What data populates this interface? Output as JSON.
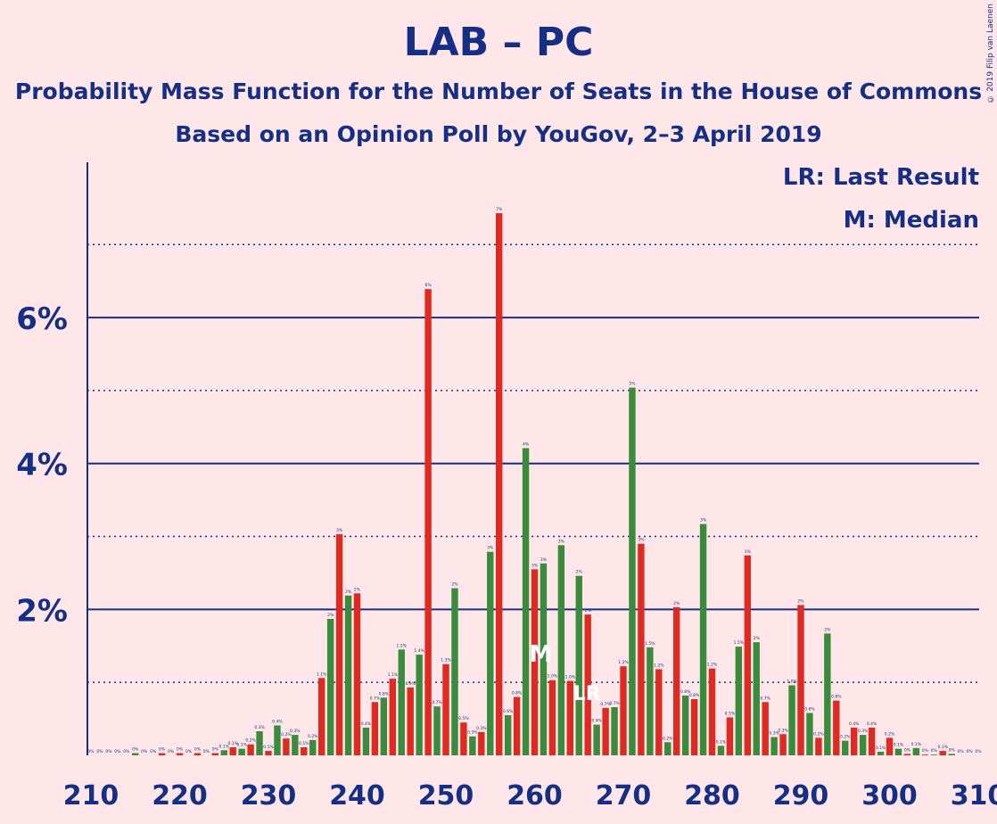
{
  "title": "LAB – PC",
  "subtitle": "Probability Mass Function for the Number of Seats in the House of Commons",
  "subtitle2": "Based on an Opinion Poll by YouGov, 2–3 April 2019",
  "legend": {
    "lr": "LR: Last Result",
    "median": "M: Median"
  },
  "copyright": "© 2019 Filip van Laenen",
  "colors": {
    "background": "#FFE6E8",
    "text": "#162F86",
    "bar_a": "#3A8C3C",
    "bar_b": "#DD2B22"
  },
  "chart_data": {
    "type": "bar",
    "xlim": [
      210,
      310
    ],
    "ylim": [
      0,
      0.08
    ],
    "x_ticks": [
      "210",
      "220",
      "230",
      "240",
      "250",
      "260",
      "270",
      "280",
      "290",
      "300",
      "310"
    ],
    "y_ticks": [
      "2%",
      "4%",
      "6%"
    ],
    "median_seat": 261,
    "last_result_seat": 266,
    "median_label": "M",
    "last_result_label": "LR",
    "x": [
      210,
      211,
      212,
      213,
      214,
      215,
      216,
      217,
      218,
      219,
      220,
      221,
      222,
      223,
      224,
      225,
      226,
      227,
      228,
      229,
      230,
      231,
      232,
      233,
      234,
      235,
      236,
      237,
      238,
      239,
      240,
      241,
      242,
      243,
      244,
      245,
      246,
      247,
      248,
      249,
      250,
      251,
      252,
      253,
      254,
      255,
      256,
      257,
      258,
      259,
      260,
      261,
      262,
      263,
      264,
      265,
      266,
      267,
      268,
      269,
      270,
      271,
      272,
      273,
      274,
      275,
      276,
      277,
      278,
      279,
      280,
      281,
      282,
      283,
      284,
      285,
      286,
      287,
      288,
      289,
      290,
      291,
      292,
      293,
      294,
      295,
      296,
      297,
      298,
      299,
      300,
      301,
      302,
      303,
      304,
      305,
      306,
      307,
      308,
      309,
      310
    ],
    "values": [
      0,
      0,
      0,
      0,
      0,
      0.0003,
      0,
      0,
      0.0003,
      0,
      0.0003,
      0,
      0.0003,
      0,
      0.0003,
      0.0007,
      0.0011,
      0.0009,
      0.0015,
      0.0033,
      0.0006,
      0.0041,
      0.0023,
      0.0028,
      0.0011,
      0.0021,
      0.0106,
      0.0187,
      0.0303,
      0.0219,
      0.0222,
      0.0038,
      0.0073,
      0.0079,
      0.0105,
      0.0145,
      0.0093,
      0.0138,
      0.0639,
      0.0067,
      0.0125,
      0.0229,
      0.0045,
      0.0026,
      0.0032,
      0.0279,
      0.0743,
      0.0055,
      0.008,
      0.0421,
      0.0255,
      0.0263,
      0.0103,
      0.0288,
      0.0102,
      0.0246,
      0.0193,
      0.0042,
      0.0065,
      0.0066,
      0.0122,
      0.0504,
      0.029,
      0.0148,
      0.0118,
      0.0018,
      0.0203,
      0.0082,
      0.0077,
      0.0317,
      0.0119,
      0.0013,
      0.0052,
      0.0149,
      0.0274,
      0.0155,
      0.0073,
      0.0025,
      0.0029,
      0.0096,
      0.0206,
      0.0058,
      0.0024,
      0.0167,
      0.0075,
      0.002,
      0.0038,
      0.0028,
      0.0038,
      0.0005,
      0.0024,
      0.0009,
      0.0002,
      0.001,
      0.0001,
      0.0001,
      0.0006,
      0.0002,
      0,
      0,
      0
    ],
    "data_labels": [
      "0%",
      "0%",
      "0%",
      "0%",
      "0%",
      "0%",
      "0%",
      "0%",
      "0%",
      "0%",
      "0%",
      "0%",
      "0%",
      "0%",
      "0%",
      "0.1%",
      "0.1%",
      "0.1%",
      "0.2%",
      "0.3%",
      "0.1%",
      "0.4%",
      "0.2%",
      "0.3%",
      "0.1%",
      "0.2%",
      "1.1%",
      "2%",
      "3%",
      "2%",
      "2%",
      "0.4%",
      "0.7%",
      "0.8%",
      "1.1%",
      "1.5%",
      "0.9%",
      "1.4%",
      "6%",
      "0.7%",
      "1.3%",
      "2%",
      "0.5%",
      "0.3%",
      "0.3%",
      "3%",
      "7%",
      "0.6%",
      "0.8%",
      "4%",
      "3%",
      "3%",
      "1.0%",
      "3%",
      "1.0%",
      "2%",
      "2%",
      "0.4%",
      "0.7%",
      "0.7%",
      "1.2%",
      "5%",
      "3%",
      "1.5%",
      "1.2%",
      "0.2%",
      "2%",
      "0.8%",
      "0.8%",
      "3%",
      "1.2%",
      "0.1%",
      "0.5%",
      "1.5%",
      "3%",
      "2%",
      "0.7%",
      "0.3%",
      "0.3%",
      "1.0%",
      "2%",
      "0.6%",
      "0.2%",
      "2%",
      "0.8%",
      "0.2%",
      "0.4%",
      "0.3%",
      "0.4%",
      "0.1%",
      "0.2%",
      "0.1%",
      "0%",
      "0.1%",
      "0%",
      "0%",
      "0.1%",
      "0%",
      "0%",
      "0%",
      "0%"
    ]
  }
}
